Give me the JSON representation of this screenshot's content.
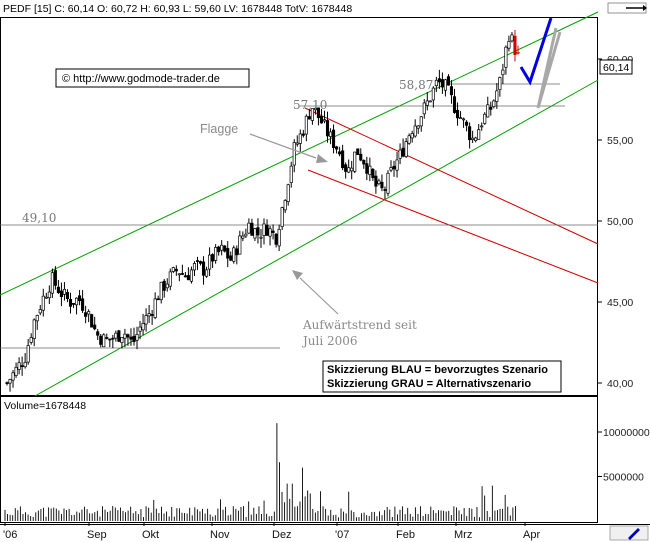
{
  "header": {
    "symbol": "PEDF",
    "interval": "[15]",
    "close_label": "C: 60,14",
    "open_label": "O: 60,72",
    "high_label": "H: 60,93",
    "low_label": "L: 59,60",
    "lv_label": "LV: 1678448",
    "totv_label": "TotV: 1678448"
  },
  "copyright": "© http://www.godmode-trader.de",
  "last_price_badge": "60,14",
  "annotations": {
    "flagge": "Flagge",
    "trend_line1": "Aufwärtstrend seit",
    "trend_line2": "Juli 2006",
    "level_5710": "57,10",
    "level_5887": "58,87",
    "level_4910": "49,10"
  },
  "legend_box": {
    "line1": "Skizzierung BLAU = bevorzugtes Szenario",
    "line2": "Skizzierung GRAU = Alternativszenario"
  },
  "volume_panel": {
    "title": "Volume=1678448",
    "tick_labels": [
      "10000000",
      "5000000"
    ]
  },
  "chart_data": [
    {
      "type": "candlestick",
      "title": "PEDF [15]",
      "y_tick_labels": [
        "60,00",
        "55,00",
        "50,00",
        "45,00",
        "40,00"
      ],
      "y_ticks": [
        60,
        55,
        50,
        45,
        40
      ],
      "ylim": [
        39.5,
        64.5
      ],
      "x_tick_labels": [
        "'06",
        "Sep",
        "Okt",
        "Nov",
        "Dez",
        "'07",
        "Feb",
        "Mrz",
        "Apr"
      ],
      "last_close": 60.14,
      "horizontal_levels": [
        57.1,
        58.87,
        49.1,
        42.0
      ],
      "grid": false,
      "price_path_sample": [
        40.0,
        40.8,
        41.6,
        43.8,
        45.2,
        46.4,
        45.6,
        45.0,
        45.2,
        44.4,
        43.0,
        42.6,
        42.8,
        43.2,
        42.4,
        43.6,
        44.4,
        45.6,
        46.4,
        47.0,
        46.6,
        47.2,
        47.0,
        47.8,
        48.2,
        47.6,
        48.8,
        49.8,
        49.2,
        49.6,
        49.0,
        51.6,
        54.4,
        55.6,
        57.1,
        56.2,
        55.2,
        54.4,
        53.0,
        54.4,
        53.6,
        52.2,
        51.8,
        53.2,
        54.2,
        55.6,
        56.4,
        57.4,
        58.6,
        58.2,
        57.0,
        56.0,
        55.0,
        56.2,
        57.0,
        58.6,
        61.6,
        60.14
      ]
    },
    {
      "type": "bar",
      "title": "Volume",
      "y_tick_labels": [
        "10000000",
        "5000000"
      ],
      "last_volume": 1678448,
      "notable_spike": 11000000
    }
  ],
  "colors": {
    "channel_green": "#00a000",
    "flag_red": "#d40000",
    "scenario_blue": "#0000e0",
    "scenario_gray": "#a0a0a0",
    "candle": "#000000"
  }
}
